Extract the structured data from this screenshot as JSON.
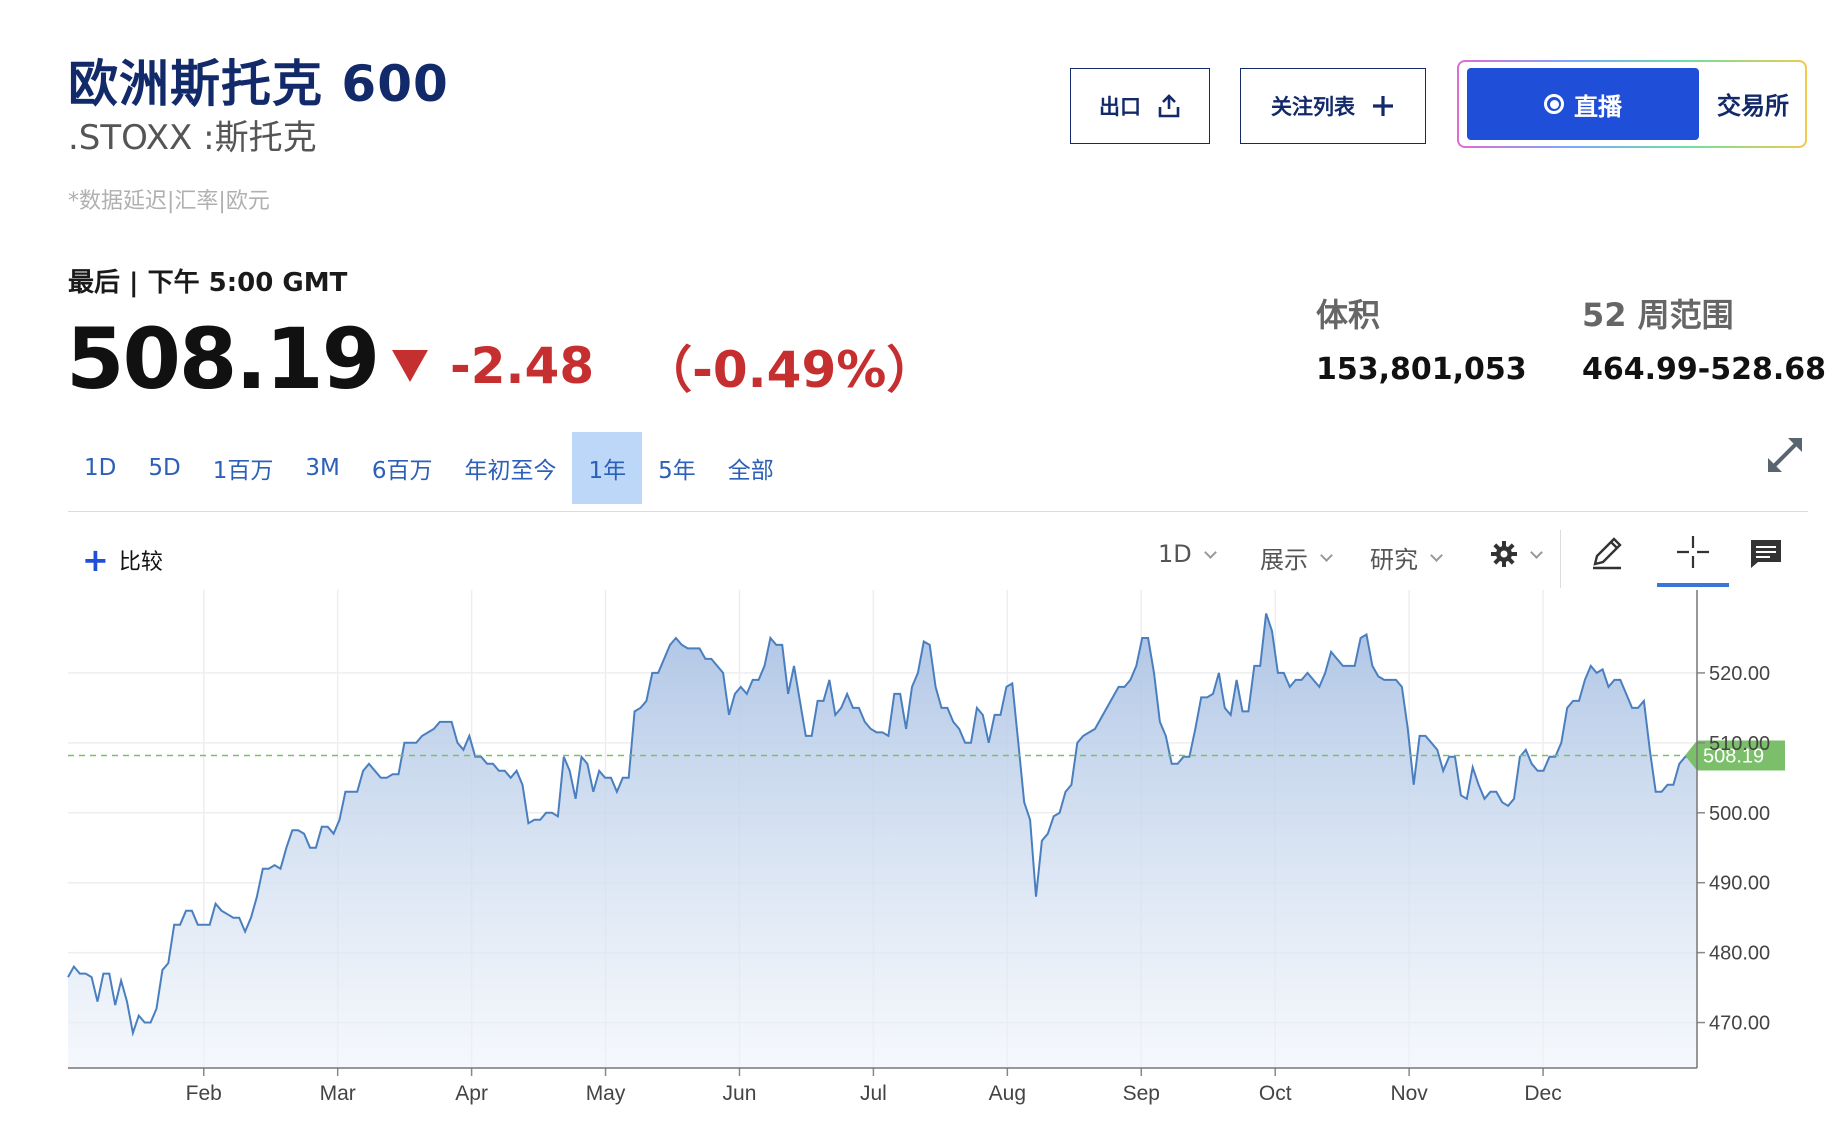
{
  "header": {
    "title": "欧洲斯托克 600",
    "symbol": ".STOXX :斯托克",
    "note": "*数据延迟|汇率|欧元"
  },
  "actions": {
    "export_label": "出口",
    "watchlist_label": "关注列表",
    "live_label": "直播",
    "exchange_label": "交易所"
  },
  "quote": {
    "last_label": "最后 | 下午 5:00 GMT",
    "price": "508.19",
    "change": "-2.48",
    "change_pct": "（-0.49%）",
    "direction": "down",
    "change_color": "#c62f2f"
  },
  "stats": {
    "volume_label": "体积",
    "volume_value": "153,801,053",
    "range_label": "52 周范围",
    "range_value": "464.99-528.68"
  },
  "ranges": {
    "items": [
      "1D",
      "5D",
      "1百万",
      "3M",
      "6百万",
      "年初至今",
      "1年",
      "5年",
      "全部"
    ],
    "active": "1年"
  },
  "toolbar": {
    "compare_label": "比较",
    "interval_label": "1D",
    "display_label": "展示",
    "research_label": "研究"
  },
  "chart_data": {
    "type": "area",
    "last_value_label": "508.19",
    "last_value": 508.19,
    "ylim": [
      463.5,
      531
    ],
    "yticks": [
      470,
      480,
      490,
      500,
      510,
      520
    ],
    "ytick_labels": [
      "470.00",
      "480.00",
      "490.00",
      "500.00",
      "510.00",
      "520.00"
    ],
    "x_month_labels": [
      "Feb",
      "Mar",
      "Apr",
      "May",
      "Jun",
      "Jul",
      "Aug",
      "Sep",
      "Oct",
      "Nov",
      "Dec"
    ],
    "grid": true,
    "line_color": "#4a7fbf",
    "last_color": "#7bbf6a",
    "series": [
      {
        "values": [
          476.5,
          478,
          477,
          477,
          476.5,
          473,
          477,
          477,
          472.5,
          476,
          473,
          468.5,
          471,
          470,
          470,
          472,
          477.5,
          478.5,
          484,
          484,
          486,
          486,
          484,
          484,
          484,
          487,
          486,
          485.5,
          485,
          485,
          483,
          485,
          488,
          492,
          492,
          492.5,
          492,
          495,
          497.5,
          497.5,
          497,
          495,
          495,
          498,
          498,
          497,
          499,
          503,
          503,
          503,
          506,
          507,
          506,
          505,
          505,
          505.5,
          505.5,
          510,
          510,
          510,
          511,
          511.5,
          512,
          513,
          513,
          513,
          510,
          509,
          511,
          508,
          508,
          507,
          507,
          506,
          506,
          505,
          506,
          504,
          498.5,
          499,
          499,
          500,
          500,
          499.5,
          508,
          506,
          502,
          508,
          507,
          503,
          506,
          505,
          505,
          503,
          505,
          505,
          514.5,
          515,
          516,
          520,
          520,
          522,
          524,
          525,
          524,
          523.5,
          523.5,
          523.5,
          522,
          522,
          521,
          520,
          514,
          517,
          518,
          517,
          519,
          519,
          521,
          525,
          524,
          524,
          517,
          521,
          516,
          511,
          511,
          516,
          516,
          519,
          514,
          515,
          517,
          515,
          515,
          513,
          512,
          511.5,
          511.5,
          511,
          517,
          517,
          512,
          518,
          520,
          524.5,
          524,
          518,
          515,
          515,
          513,
          512,
          510,
          510,
          515,
          514,
          510,
          514,
          514,
          518,
          518.5,
          510,
          501.5,
          499,
          488,
          496,
          497,
          499.5,
          500,
          503,
          504,
          510,
          511,
          511.5,
          512,
          513.5,
          515,
          516.5,
          518,
          518,
          519,
          521,
          525,
          525,
          520,
          513,
          511,
          507,
          507,
          508,
          508,
          512,
          516.5,
          516.5,
          517,
          520,
          515,
          514,
          519,
          514.5,
          514.5,
          521,
          521,
          528.5,
          526,
          520,
          520,
          518,
          519,
          519,
          520,
          519,
          518,
          520,
          523,
          522,
          521,
          521,
          521,
          525,
          525.5,
          521,
          519.5,
          519,
          519,
          519,
          518,
          512,
          504,
          511,
          511,
          510,
          509,
          506,
          508,
          508,
          502.5,
          502,
          506.5,
          504,
          502,
          503,
          503,
          501.5,
          501,
          502,
          508,
          509,
          507,
          506,
          506,
          508,
          508,
          510,
          515,
          516,
          516,
          519,
          521,
          520,
          520.5,
          518,
          519,
          519,
          517,
          515,
          515,
          516,
          509,
          503,
          503,
          504,
          504,
          507,
          508,
          508,
          508.19
        ]
      }
    ]
  }
}
